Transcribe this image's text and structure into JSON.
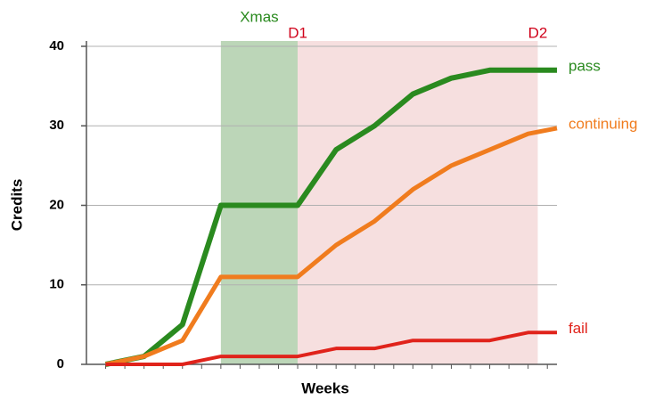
{
  "chart_data": {
    "type": "line",
    "x_label": "Weeks",
    "y_label": "Credits",
    "x": [
      0,
      2,
      4,
      6,
      8,
      10,
      12,
      14,
      16,
      18,
      20,
      22,
      23.5
    ],
    "series": [
      {
        "name": "pass",
        "color": "#2a8a1f",
        "values": [
          0,
          1,
          5,
          20,
          20,
          20,
          27,
          30,
          34,
          36,
          37,
          37,
          37
        ]
      },
      {
        "name": "continuing",
        "color": "#f07c1e",
        "values": [
          0,
          1,
          3,
          11,
          11,
          11,
          15,
          18,
          22,
          25,
          27,
          29,
          29.7
        ]
      },
      {
        "name": "fail",
        "color": "#e0231b",
        "values": [
          0,
          0,
          0,
          1,
          1,
          1,
          2,
          2,
          3,
          3,
          3,
          4,
          4
        ]
      }
    ],
    "regions": [
      {
        "from": 6,
        "to": 10,
        "color": "#bcd6b8"
      },
      {
        "from": 10,
        "to": 22.5,
        "color": "#f6dfdf"
      }
    ],
    "annotations": [
      {
        "text": "Xmas",
        "x": 8,
        "color": "#2a8a1f"
      },
      {
        "text": "D1",
        "x": 10,
        "color": "#d0021b"
      },
      {
        "text": "D2",
        "x": 22.5,
        "color": "#d0021b"
      }
    ],
    "xlim": [
      -1,
      23.5
    ],
    "xticks": [
      0,
      1,
      2,
      3,
      4,
      5,
      6,
      7,
      8,
      9,
      10,
      11,
      12,
      13,
      14,
      15,
      16,
      17,
      18,
      19,
      20,
      21,
      22,
      23
    ],
    "ylim": [
      0,
      40
    ],
    "yticks": [
      0,
      10,
      20,
      30,
      40
    ],
    "grid": true
  }
}
